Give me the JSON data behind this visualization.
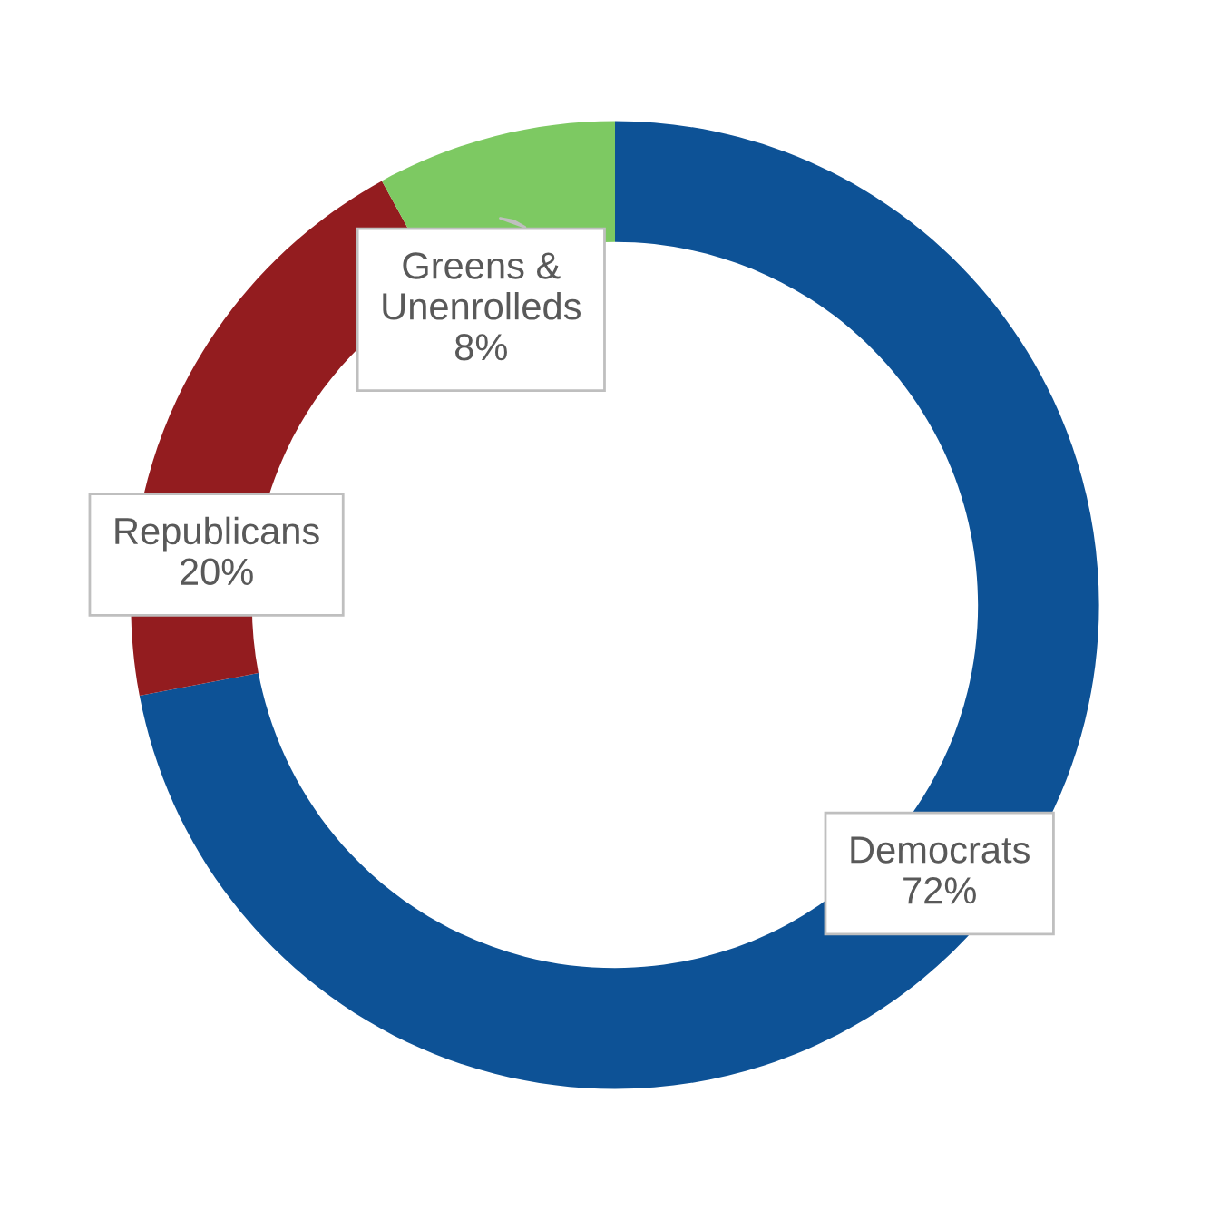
{
  "chart_data": {
    "type": "donut",
    "categories": [
      "Democrats",
      "Republicans",
      "Greens & Unenrolleds"
    ],
    "values": [
      72,
      20,
      8
    ],
    "colors": [
      "#0d5296",
      "#931c1f",
      "#7dc962"
    ],
    "value_labels": [
      "72%",
      "20%",
      "8%"
    ]
  }
}
